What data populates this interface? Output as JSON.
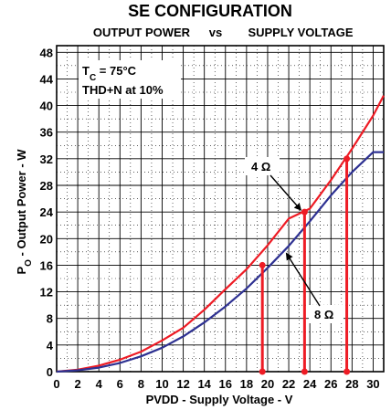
{
  "chart_data": {
    "type": "line",
    "title": "SE CONFIGURATION",
    "subtitle_left": "OUTPUT POWER",
    "subtitle_vs": "vs",
    "subtitle_right": "SUPPLY VOLTAGE",
    "xlabel": "PVDD - Supply Voltage - V",
    "ylabel_prefix": "P",
    "ylabel_sub": "O",
    "ylabel_rest": " - Output Power - W",
    "xlim": [
      0,
      31
    ],
    "ylim": [
      0,
      49
    ],
    "xticks": [
      "0",
      "2",
      "4",
      "6",
      "8",
      "10",
      "12",
      "14",
      "16",
      "18",
      "20",
      "22",
      "24",
      "26",
      "28",
      "30"
    ],
    "yticks": [
      "0",
      "4",
      "8",
      "12",
      "16",
      "20",
      "24",
      "28",
      "32",
      "36",
      "40",
      "44",
      "48"
    ],
    "grid": true,
    "conditions": {
      "tc_prefix": "T",
      "tc_sub": "C",
      "tc_rest": " = 75°C",
      "thd": "THD+N at 10%"
    },
    "series": [
      {
        "name": "4 Ω",
        "color": "#ee1c25",
        "x": [
          0,
          2,
          4,
          6,
          8,
          10,
          12,
          14,
          16,
          18,
          20,
          22,
          24,
          26,
          28,
          30,
          31
        ],
        "y": [
          0,
          0.3,
          0.9,
          1.8,
          3.0,
          4.7,
          6.6,
          9.3,
          12.4,
          15.4,
          19.0,
          23.0,
          24.5,
          28.8,
          33.5,
          38.5,
          41.5
        ]
      },
      {
        "name": "8 Ω",
        "color": "#2e3192",
        "x": [
          0,
          2,
          4,
          6,
          8,
          10,
          12,
          14,
          16,
          18,
          20,
          22,
          24,
          26,
          28,
          30,
          31
        ],
        "y": [
          0,
          0.2,
          0.6,
          1.3,
          2.3,
          3.6,
          5.3,
          7.4,
          9.8,
          12.5,
          15.6,
          18.9,
          22.6,
          26.5,
          30.0,
          33.0,
          33.0
        ]
      }
    ],
    "markers": [
      {
        "x": 19.5,
        "y": 16,
        "color": "#ee1c25"
      },
      {
        "x": 23.5,
        "y": 24,
        "color": "#ee1c25"
      },
      {
        "x": 27.5,
        "y": 32,
        "color": "#ee1c25"
      }
    ],
    "annotations": {
      "label_4ohm": "4 Ω",
      "label_8ohm": "8 Ω"
    }
  }
}
